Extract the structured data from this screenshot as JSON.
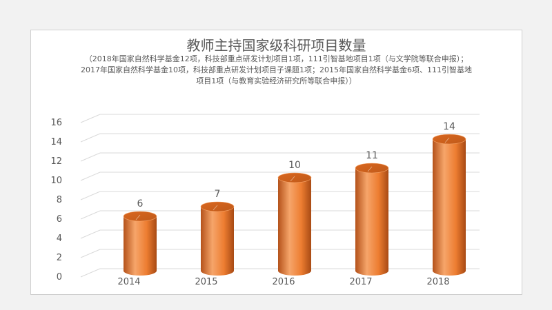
{
  "chart_data": {
    "type": "bar",
    "title": "教师主持国家级科研项目数量",
    "subtitle": "（2018年国家自然科学基金12项，科技部重点研发计划项目1项，111引智基地项目1项（与文学院等联合申报）；2017年国家自然科学基金10项，科技部重点研发计划项目子课题1项；2015年国家自然科学基金6项、111引智基地项目1项（与教育实验经济研究所等联合申报））",
    "categories": [
      "2014",
      "2015",
      "2016",
      "2017",
      "2018"
    ],
    "values": [
      6,
      7,
      10,
      11,
      14
    ],
    "ylim": [
      0,
      16
    ],
    "yticks": [
      0,
      2,
      4,
      6,
      8,
      10,
      12,
      14,
      16
    ],
    "grid": true,
    "legend": "none",
    "colors": {
      "bar": "#ed7d31",
      "bar_dark": "#b4521a",
      "bar_light": "#f6a56a",
      "grid": "#d9d9d9",
      "text": "#595959"
    }
  }
}
